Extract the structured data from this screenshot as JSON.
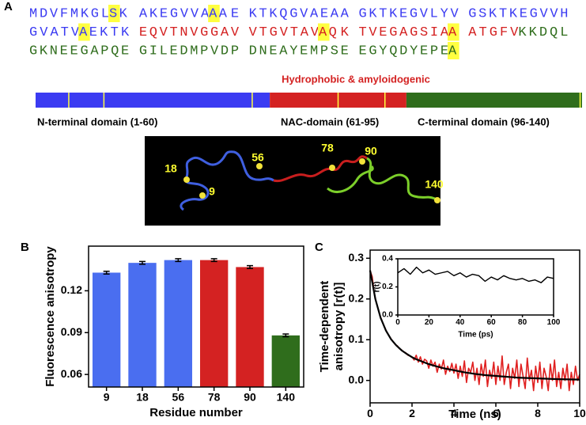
{
  "panel_labels": [
    "A",
    "B",
    "C"
  ],
  "sequence": {
    "highlight_color": "#ffff40",
    "lines": [
      [
        [
          {
            "text": "MDVFMKGL",
            "color": "#3b3bf2"
          },
          {
            "text": "S",
            "color": "#3b3bf2",
            "highlight": true
          },
          {
            "text": "K",
            "color": "#3b3bf2"
          }
        ],
        [
          {
            "text": "AKEGVVA",
            "color": "#3b3bf2"
          },
          {
            "text": "A",
            "color": "#3b3bf2",
            "highlight": true
          },
          {
            "text": "AE",
            "color": "#3b3bf2"
          }
        ],
        [
          {
            "text": "KTKQGVAEAA",
            "color": "#3b3bf2"
          }
        ],
        [
          {
            "text": "GKTKEGVLYV",
            "color": "#3b3bf2"
          }
        ],
        [
          {
            "text": "GSKTKEGVVH",
            "color": "#3b3bf2"
          }
        ]
      ],
      [
        [
          {
            "text": "GVATV",
            "color": "#3b3bf2"
          },
          {
            "text": "A",
            "color": "#3b3bf2",
            "highlight": true
          },
          {
            "text": "EKTK",
            "color": "#3b3bf2"
          }
        ],
        [
          {
            "text": "EQVTNVGGAV",
            "color": "#d42222"
          }
        ],
        [
          {
            "text": "VTGVTAV",
            "color": "#d42222"
          },
          {
            "text": "A",
            "color": "#d42222",
            "highlight": true
          },
          {
            "text": "QK",
            "color": "#d42222"
          }
        ],
        [
          {
            "text": "TVEGAGSIA",
            "color": "#d42222"
          },
          {
            "text": "A",
            "color": "#d42222",
            "highlight": true
          }
        ],
        [
          {
            "text": "ATGFV",
            "color": "#d42222"
          },
          {
            "text": "KKDQL",
            "color": "#2f6d1c"
          }
        ]
      ],
      [
        [
          {
            "text": "GKNEEGAPQE",
            "color": "#2f6d1c"
          }
        ],
        [
          {
            "text": "GILEDMPVDP",
            "color": "#2f6d1c"
          }
        ],
        [
          {
            "text": "DNEAYEMPSE",
            "color": "#2f6d1c"
          }
        ],
        [
          {
            "text": "EGYQDYEPE",
            "color": "#2f6d1c"
          },
          {
            "text": "A",
            "color": "#2f6d1c",
            "highlight": true
          }
        ]
      ]
    ]
  },
  "annotation": "Hydrophobic & amyloidogenic",
  "domain_map": {
    "length": 140,
    "marker_color": "#ffff40",
    "markers": [
      9,
      18,
      56,
      78,
      90,
      140
    ],
    "domains": [
      {
        "label": "N-terminal domain  (1-60)",
        "start": 1,
        "end": 60,
        "color": "#3b3bf2"
      },
      {
        "label": "NAC-domain (61-95)",
        "start": 61,
        "end": 95,
        "color": "#d42222"
      },
      {
        "label": "C-terminal domain (96-140)",
        "start": 96,
        "end": 140,
        "color": "#2f6d1c"
      }
    ]
  },
  "structure": {
    "labels": [
      "18",
      "9",
      "56",
      "78",
      "90",
      "140"
    ]
  },
  "chart_data": [
    {
      "type": "bar",
      "xlabel": "Residue number",
      "ylabel": "Fluorescence anisotropy",
      "categories": [
        "9",
        "18",
        "56",
        "78",
        "90",
        "140"
      ],
      "values": [
        0.133,
        0.14,
        0.142,
        0.142,
        0.137,
        0.088
      ],
      "errors": [
        0.001,
        0.001,
        0.001,
        0.001,
        0.001,
        0.001
      ],
      "colors": [
        "#4a6ef0",
        "#4a6ef0",
        "#4a6ef0",
        "#d42222",
        "#d42222",
        "#2f6d1c"
      ],
      "ylim": [
        0.051,
        0.152
      ],
      "yticks": [
        0.06,
        0.09,
        0.12
      ]
    },
    {
      "type": "line",
      "xlabel": "Time (ns)",
      "ylabel": [
        "Time-dependent",
        "anisotropy [r(t)]"
      ],
      "xlim": [
        0,
        10
      ],
      "ylim": [
        -0.055,
        0.32
      ],
      "xticks": [
        0,
        2,
        4,
        6,
        8,
        10
      ],
      "yticks": [
        {
          "value": 0,
          "label": "0.0"
        },
        0.1,
        0.2,
        0.3
      ],
      "series": [
        {
          "color": "#e02020",
          "width": 1.6,
          "x": [
            0,
            0.1,
            0.2,
            0.3,
            0.4,
            0.5,
            0.6,
            0.7,
            0.8,
            0.9,
            1,
            1.1,
            1.2,
            1.3,
            1.4,
            1.5,
            1.6,
            1.7,
            1.8,
            1.9,
            2,
            2.1,
            2.2,
            2.3,
            2.4,
            2.5,
            2.6,
            2.7,
            2.8,
            2.9,
            3,
            3.1,
            3.2,
            3.3,
            3.4,
            3.5,
            3.6,
            3.7,
            3.8,
            3.9,
            4,
            4.1,
            4.2,
            4.3,
            4.4,
            4.5,
            4.6,
            4.7,
            4.8,
            4.9,
            5,
            5.1,
            5.2,
            5.3,
            5.4,
            5.5,
            5.6,
            5.7,
            5.8,
            5.9,
            6,
            6.1,
            6.2,
            6.3,
            6.4,
            6.5,
            6.6,
            6.7,
            6.8,
            6.9,
            7,
            7.1,
            7.2,
            7.3,
            7.4,
            7.5,
            7.6,
            7.7,
            7.8,
            7.9,
            8,
            8.1,
            8.2,
            8.3,
            8.4,
            8.5,
            8.6,
            8.7,
            8.8,
            8.9,
            9,
            9.1,
            9.2,
            9.3,
            9.4,
            9.5,
            9.6,
            9.7,
            9.8,
            9.9,
            10
          ],
          "values": [
            0.27,
            0.255,
            0.215,
            0.19,
            0.172,
            0.155,
            0.142,
            0.13,
            0.118,
            0.11,
            0.102,
            0.095,
            0.088,
            0.085,
            0.078,
            0.075,
            0.07,
            0.068,
            0.062,
            0.06,
            0.058,
            0.05,
            0.062,
            0.045,
            0.058,
            0.04,
            0.052,
            0.048,
            0.03,
            0.05,
            0.035,
            0.045,
            0.02,
            0.04,
            0.028,
            0.05,
            0.015,
            0.035,
            0.022,
            0.042,
            0.018,
            0.04,
            0.005,
            0.035,
            0.01,
            0.048,
            -0.005,
            0.03,
            0.02,
            0.045,
            0.0,
            0.03,
            -0.01,
            0.04,
            0.01,
            0.05,
            -0.015,
            0.025,
            0.005,
            0.045,
            -0.01,
            0.035,
            0.0,
            0.06,
            -0.01,
            0.02,
            0.04,
            -0.02,
            0.03,
            0.005,
            0.05,
            -0.015,
            0.04,
            0.01,
            -0.02,
            0.055,
            0.0,
            0.025,
            -0.025,
            0.035,
            -0.005,
            0.045,
            -0.02,
            0.03,
            0.01,
            -0.025,
            0.04,
            0.0,
            0.05,
            -0.015,
            0.02,
            -0.02,
            0.03,
            0.0,
            0.04,
            -0.025,
            0.02,
            -0.01,
            0.035,
            0.0,
            0.015
          ]
        },
        {
          "color": "#000000",
          "width": 2.2,
          "x": [
            0,
            0.25,
            0.5,
            0.75,
            1,
            1.25,
            1.5,
            1.75,
            2,
            2.25,
            2.5,
            2.75,
            3,
            3.5,
            4,
            4.5,
            5,
            5.5,
            6,
            7,
            8,
            9,
            10
          ],
          "values": [
            0.27,
            0.2,
            0.154,
            0.123,
            0.101,
            0.086,
            0.074,
            0.065,
            0.057,
            0.051,
            0.046,
            0.041,
            0.037,
            0.03,
            0.025,
            0.02,
            0.016,
            0.013,
            0.011,
            0.007,
            0.005,
            0.003,
            0.002
          ]
        }
      ]
    },
    {
      "type": "line",
      "xlabel": "Time (ps)",
      "ylabel": "r(t)",
      "xlim": [
        0,
        100
      ],
      "ylim": [
        0,
        0.4
      ],
      "xticks": [
        0,
        20,
        40,
        60,
        80,
        100
      ],
      "yticks": [
        {
          "value": 0,
          "label": "0.0"
        },
        0.2,
        0.4
      ],
      "series": [
        {
          "color": "#000000",
          "width": 1.4,
          "x": [
            0,
            4,
            8,
            12,
            16,
            20,
            24,
            28,
            32,
            36,
            40,
            44,
            48,
            52,
            56,
            60,
            64,
            68,
            72,
            76,
            80,
            84,
            88,
            92,
            96,
            100
          ],
          "values": [
            0.3,
            0.33,
            0.29,
            0.34,
            0.3,
            0.32,
            0.29,
            0.3,
            0.31,
            0.28,
            0.3,
            0.27,
            0.29,
            0.28,
            0.24,
            0.27,
            0.25,
            0.28,
            0.26,
            0.25,
            0.26,
            0.24,
            0.25,
            0.23,
            0.27,
            0.26
          ]
        }
      ]
    }
  ]
}
